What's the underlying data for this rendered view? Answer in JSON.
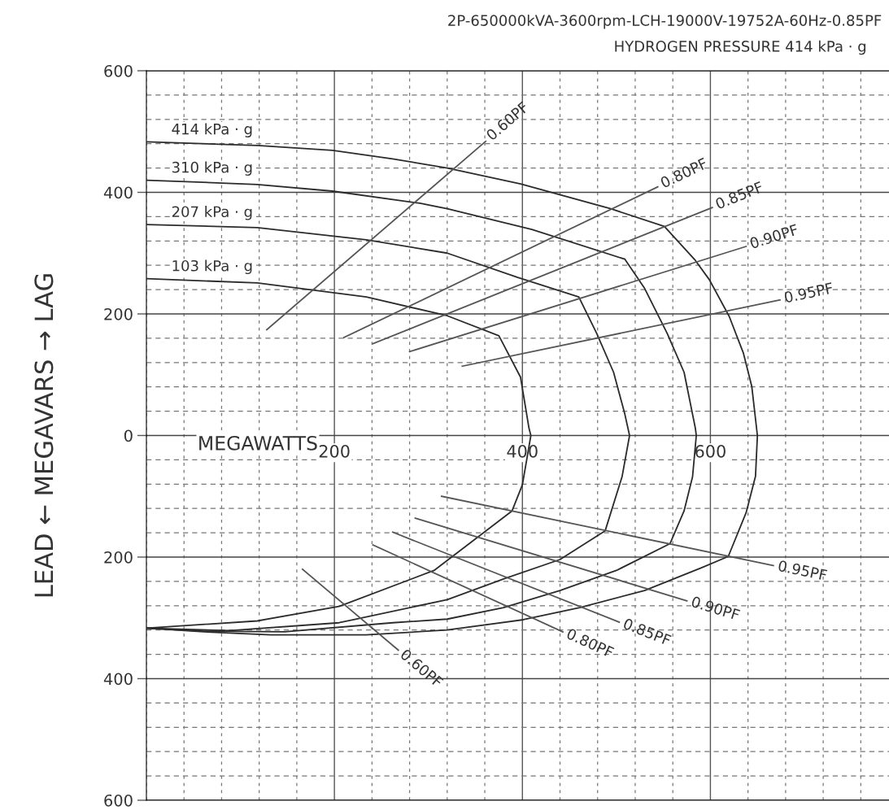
{
  "chart_data": {
    "type": "line",
    "title": "2P-650000kVA-3600rpm-LCH-19000V-19752A-60Hz-0.85PF",
    "subtitle": "HYDROGEN PRESSURE 414 kPa · g",
    "xlabel": "MEGAWATTS",
    "ylabel": "LEAD ← MEGAVARS → LAG",
    "xlim": [
      0,
      790
    ],
    "ylim": [
      -600,
      600
    ],
    "xticks": [
      200,
      400,
      600
    ],
    "yticks": [
      {
        "value": -600,
        "label": "600"
      },
      {
        "value": -400,
        "label": "400"
      },
      {
        "value": -200,
        "label": "200"
      },
      0,
      200,
      400,
      600
    ],
    "grid": true,
    "marker": "none",
    "line_style": "solid",
    "series": [
      {
        "name": "414 kPa · g",
        "color": "#2b2b2b",
        "x": [
          0,
          118,
          198,
          262,
          320,
          398,
          494,
          551,
          584,
          599,
          620,
          635,
          644,
          650,
          648,
          638,
          619,
          590,
          530,
          461,
          401,
          320,
          234,
          132,
          61,
          0
        ],
        "values": [
          483,
          477,
          469,
          455,
          440,
          414,
          373,
          344,
          288,
          256,
          196,
          136,
          81,
          0,
          -67,
          -127,
          -199,
          -218,
          -255,
          -283,
          -303,
          -320,
          -328,
          -328,
          -323,
          -317
        ]
      },
      {
        "name": "310 kPa · g",
        "color": "#2b2b2b",
        "x": [
          0,
          118,
          198,
          291,
          320,
          410,
          509,
          530,
          554,
          572,
          584,
          585,
          581,
          572,
          557,
          500,
          440,
          380,
          320,
          262,
          147,
          61,
          0
        ],
        "values": [
          420,
          413,
          402,
          382,
          373,
          339,
          290,
          242,
          168,
          104,
          12,
          0,
          -68,
          -124,
          -178,
          -222,
          -255,
          -283,
          -302,
          -308,
          -323,
          -322,
          -317
        ]
      },
      {
        "name": "207 kPa · g",
        "color": "#2b2b2b",
        "x": [
          0,
          118,
          234,
          320,
          395,
          460,
          479,
          497,
          509,
          514,
          506,
          488,
          440,
          380,
          320,
          205,
          89,
          0
        ],
        "values": [
          347,
          342,
          322,
          300,
          260,
          228,
          168,
          104,
          35,
          0,
          -68,
          -157,
          -204,
          -236,
          -270,
          -308,
          -321,
          -317
        ]
      },
      {
        "name": "103 kPa · g",
        "color": "#2b2b2b",
        "x": [
          0,
          118,
          234,
          320,
          375,
          398,
          407,
          409,
          400,
          389,
          306,
          205,
          118,
          0
        ],
        "values": [
          258,
          251,
          228,
          197,
          164,
          96,
          12,
          0,
          -81,
          -124,
          -222,
          -281,
          -305,
          -317
        ]
      },
      {
        "name": "0.60PF",
        "color": "#555555",
        "x": [
          128,
          361
        ],
        "values": [
          174,
          484
        ]
      },
      {
        "name": "0.80PF",
        "color": "#555555",
        "x": [
          210,
          544
        ],
        "values": [
          161,
          409
        ]
      },
      {
        "name": "0.85PF",
        "color": "#555555",
        "x": [
          241,
          602
        ],
        "values": [
          151,
          375
        ]
      },
      {
        "name": "0.90PF",
        "color": "#555555",
        "x": [
          280,
          638
        ],
        "values": [
          138,
          311
        ]
      },
      {
        "name": "0.95PF",
        "color": "#555555",
        "x": [
          336,
          674
        ],
        "values": [
          114,
          223
        ]
      },
      {
        "name": "0.95PF",
        "color": "#555555",
        "x": [
          314,
          667
        ],
        "values": [
          -100,
          -214
        ]
      },
      {
        "name": "0.90PF",
        "color": "#555555",
        "x": [
          286,
          575
        ],
        "values": [
          -136,
          -272
        ]
      },
      {
        "name": "0.85PF",
        "color": "#555555",
        "x": [
          262,
          503
        ],
        "values": [
          -159,
          -307
        ]
      },
      {
        "name": "0.80PF",
        "color": "#555555",
        "x": [
          241,
          443
        ],
        "values": [
          -180,
          -323
        ]
      },
      {
        "name": "0.60PF",
        "color": "#555555",
        "x": [
          166,
          268
        ],
        "values": [
          -220,
          -353
        ]
      }
    ]
  }
}
